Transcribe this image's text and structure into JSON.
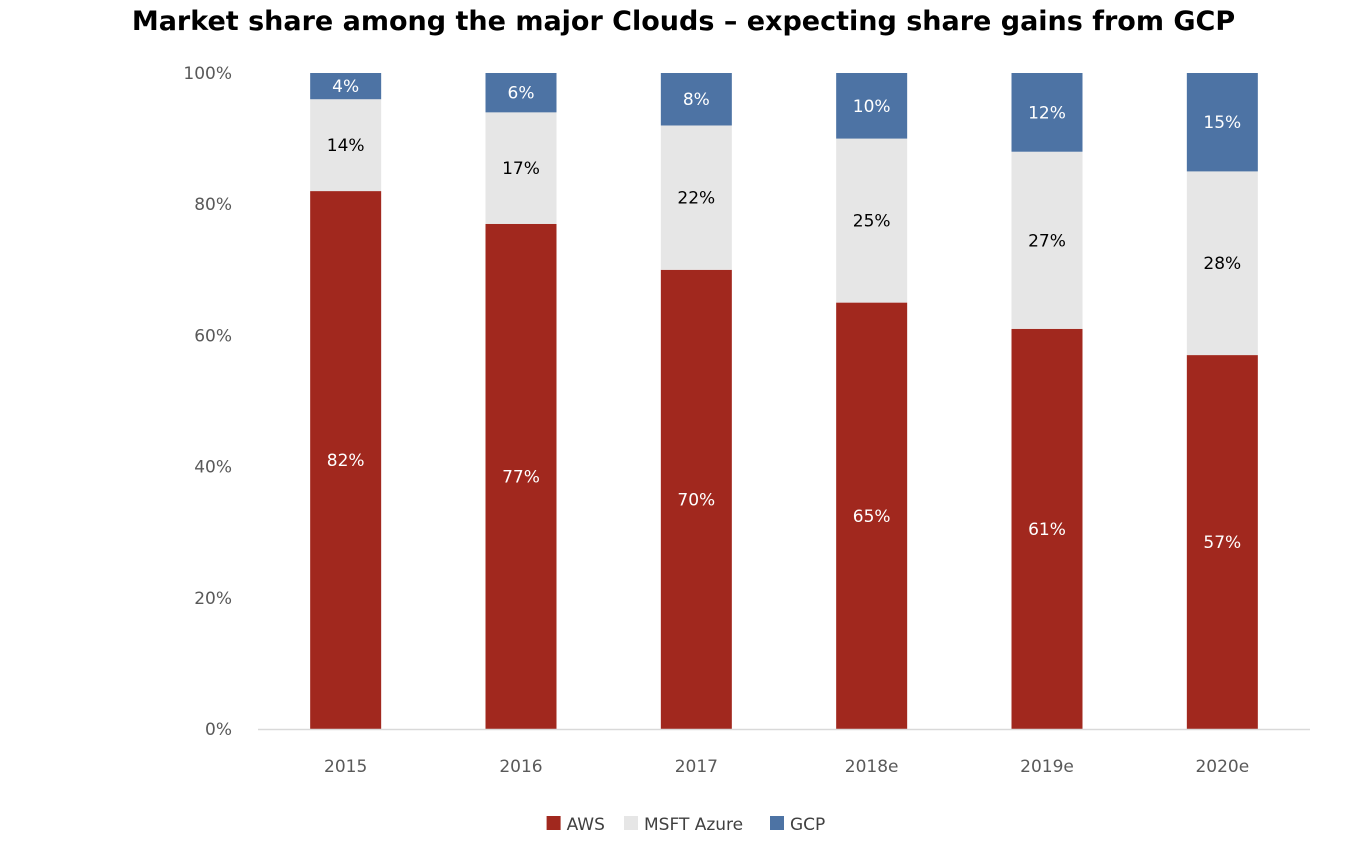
{
  "chart_data": {
    "type": "bar",
    "stacked": true,
    "title": "Market share among the major Clouds – expecting share gains from GCP",
    "categories": [
      "2015",
      "2016",
      "2017",
      "2018e",
      "2019e",
      "2020e"
    ],
    "series": [
      {
        "name": "AWS",
        "values": [
          82,
          77,
          70,
          65,
          61,
          57
        ],
        "labels": [
          "82%",
          "77%",
          "70%",
          "65%",
          "61%",
          "57%"
        ],
        "color": "#A1281E",
        "label_color": "#ffffff"
      },
      {
        "name": "MSFT Azure",
        "values": [
          14,
          17,
          22,
          25,
          27,
          28
        ],
        "labels": [
          "14%",
          "17%",
          "22%",
          "25%",
          "27%",
          "28%"
        ],
        "color": "#E6E6E6",
        "label_color": "#000000"
      },
      {
        "name": "GCP",
        "values": [
          4,
          6,
          8,
          10,
          12,
          15
        ],
        "labels": [
          "4%",
          "6%",
          "8%",
          "10%",
          "12%",
          "15%"
        ],
        "color": "#4D73A4",
        "label_color": "#ffffff"
      }
    ],
    "ylim": [
      0,
      100
    ],
    "yticks": [
      0,
      20,
      40,
      60,
      80,
      100
    ],
    "ytick_labels": [
      "0%",
      "20%",
      "40%",
      "60%",
      "80%",
      "100%"
    ],
    "xlabel": "",
    "ylabel": "",
    "grid": false,
    "legend_position": "bottom-center"
  }
}
